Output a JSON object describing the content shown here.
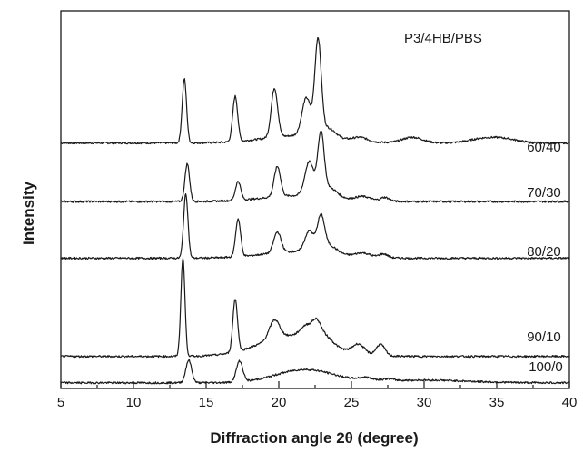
{
  "chart_data": {
    "type": "line",
    "title": "",
    "legend_title": "P3/4HB/PBS",
    "xlabel": "Diffraction angle 2θ (degree)",
    "ylabel": "Intensity",
    "xlim": [
      5,
      40
    ],
    "xticks": [
      5,
      10,
      15,
      20,
      25,
      30,
      35,
      40
    ],
    "xtick_labels": [
      "5",
      "10",
      "15",
      "20",
      "25",
      "30",
      "35",
      "40"
    ],
    "y_ticks_shown": false,
    "grid": false,
    "ylim": [
      0,
      100
    ],
    "series": [
      {
        "name": "60/40",
        "baseline": 65,
        "peaks": [
          [
            13.5,
            17,
            0.15
          ],
          [
            17.0,
            12,
            0.17
          ],
          [
            19.7,
            13,
            0.22
          ],
          [
            21.9,
            10,
            0.3
          ],
          [
            22.7,
            25,
            0.22
          ],
          [
            23.4,
            2.5,
            0.5
          ],
          [
            25.6,
            1,
            0.5
          ],
          [
            29.2,
            1.5,
            0.7
          ],
          [
            34.0,
            1,
            1.0
          ],
          [
            35.5,
            1,
            1.0
          ]
        ],
        "halo": [
          [
            21.5,
            2.0,
            2.5
          ]
        ]
      },
      {
        "name": "70/30",
        "baseline": 49.5,
        "peaks": [
          [
            13.7,
            10,
            0.16
          ],
          [
            17.2,
            5,
            0.18
          ],
          [
            19.9,
            8,
            0.22
          ],
          [
            22.1,
            9,
            0.3
          ],
          [
            22.9,
            16,
            0.22
          ],
          [
            23.5,
            2.5,
            0.5
          ],
          [
            25.8,
            1,
            0.5
          ],
          [
            27.3,
            1,
            0.3
          ]
        ],
        "halo": [
          [
            21.5,
            1.6,
            2.5
          ]
        ]
      },
      {
        "name": "80/20",
        "baseline": 34.5,
        "peaks": [
          [
            13.6,
            17,
            0.15
          ],
          [
            17.2,
            10,
            0.17
          ],
          [
            19.9,
            5.5,
            0.25
          ],
          [
            22.1,
            5.5,
            0.3
          ],
          [
            22.9,
            9,
            0.25
          ],
          [
            23.5,
            2,
            0.5
          ],
          [
            25.8,
            1,
            0.5
          ],
          [
            27.2,
            1,
            0.3
          ]
        ],
        "halo": [
          [
            21.5,
            1.8,
            2.5
          ]
        ]
      },
      {
        "name": "90/10",
        "baseline": 8.5,
        "peaks": [
          [
            13.4,
            26,
            0.14
          ],
          [
            17.0,
            14,
            0.16
          ],
          [
            19.7,
            5,
            0.35
          ],
          [
            21.9,
            3,
            0.4
          ],
          [
            22.6,
            4,
            0.3
          ],
          [
            23.2,
            2,
            0.5
          ],
          [
            25.5,
            2.5,
            0.4
          ],
          [
            27.0,
            3,
            0.3
          ]
        ],
        "halo": [
          [
            21.0,
            5.5,
            2.3
          ]
        ]
      },
      {
        "name": "100/0",
        "baseline": 1.5,
        "peaks": [
          [
            13.8,
            6,
            0.2
          ],
          [
            17.3,
            5.5,
            0.22
          ],
          [
            26.0,
            0.8,
            0.5
          ],
          [
            27.5,
            0.5,
            0.4
          ]
        ],
        "halo": [
          [
            21.8,
            3.5,
            2.0
          ],
          [
            30.0,
            0.7,
            3.0
          ]
        ]
      }
    ]
  }
}
